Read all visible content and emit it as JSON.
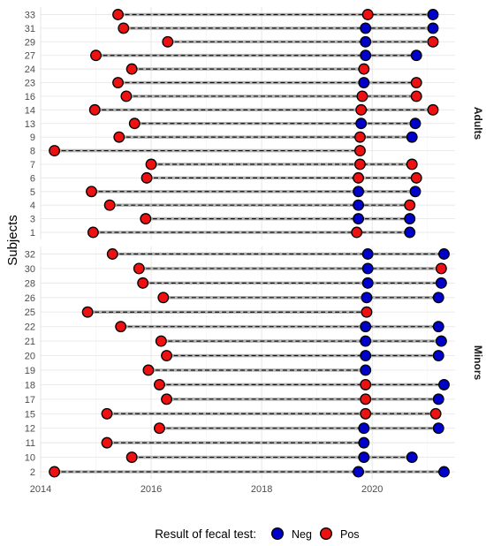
{
  "chart_data": {
    "type": "scatter",
    "ylabel": "Subjects",
    "xlim": [
      2014,
      2021.5
    ],
    "x_ticks": [
      "2014",
      "2016",
      "2018",
      "2020"
    ],
    "x_tick_values": [
      2014,
      2016,
      2018,
      2020
    ],
    "grid": true,
    "legend": {
      "title": "Result of fecal test:",
      "placement": "bottom",
      "entries": [
        {
          "label": "Neg",
          "color": "#0000cd"
        },
        {
          "label": "Pos",
          "color": "#ee1111"
        }
      ]
    },
    "panels": [
      {
        "name": "Adults",
        "subjects": [
          {
            "id": "33",
            "tests": [
              {
                "x": 2015.4,
                "result": "Pos"
              },
              {
                "x": 2019.92,
                "result": "Pos"
              },
              {
                "x": 2021.1,
                "result": "Neg"
              }
            ]
          },
          {
            "id": "31",
            "tests": [
              {
                "x": 2015.5,
                "result": "Pos"
              },
              {
                "x": 2019.88,
                "result": "Neg"
              },
              {
                "x": 2021.1,
                "result": "Neg"
              }
            ]
          },
          {
            "id": "29",
            "tests": [
              {
                "x": 2016.3,
                "result": "Pos"
              },
              {
                "x": 2019.88,
                "result": "Neg"
              },
              {
                "x": 2021.1,
                "result": "Pos"
              }
            ]
          },
          {
            "id": "27",
            "tests": [
              {
                "x": 2015.0,
                "result": "Pos"
              },
              {
                "x": 2019.88,
                "result": "Neg"
              },
              {
                "x": 2020.8,
                "result": "Neg"
              }
            ]
          },
          {
            "id": "24",
            "tests": [
              {
                "x": 2015.65,
                "result": "Pos"
              },
              {
                "x": 2019.85,
                "result": "Pos"
              }
            ]
          },
          {
            "id": "23",
            "tests": [
              {
                "x": 2015.4,
                "result": "Pos"
              },
              {
                "x": 2019.85,
                "result": "Neg"
              },
              {
                "x": 2020.8,
                "result": "Pos"
              }
            ]
          },
          {
            "id": "16",
            "tests": [
              {
                "x": 2015.55,
                "result": "Pos"
              },
              {
                "x": 2019.82,
                "result": "Pos"
              },
              {
                "x": 2020.8,
                "result": "Pos"
              }
            ]
          },
          {
            "id": "14",
            "tests": [
              {
                "x": 2014.98,
                "result": "Pos"
              },
              {
                "x": 2019.8,
                "result": "Pos"
              },
              {
                "x": 2021.1,
                "result": "Pos"
              }
            ]
          },
          {
            "id": "13",
            "tests": [
              {
                "x": 2015.7,
                "result": "Pos"
              },
              {
                "x": 2019.8,
                "result": "Neg"
              },
              {
                "x": 2020.78,
                "result": "Neg"
              }
            ]
          },
          {
            "id": "9",
            "tests": [
              {
                "x": 2015.42,
                "result": "Pos"
              },
              {
                "x": 2019.78,
                "result": "Pos"
              },
              {
                "x": 2020.72,
                "result": "Neg"
              }
            ]
          },
          {
            "id": "8",
            "tests": [
              {
                "x": 2014.25,
                "result": "Pos"
              },
              {
                "x": 2019.78,
                "result": "Pos"
              }
            ]
          },
          {
            "id": "7",
            "tests": [
              {
                "x": 2016.0,
                "result": "Pos"
              },
              {
                "x": 2019.78,
                "result": "Pos"
              },
              {
                "x": 2020.72,
                "result": "Pos"
              }
            ]
          },
          {
            "id": "6",
            "tests": [
              {
                "x": 2015.92,
                "result": "Pos"
              },
              {
                "x": 2019.75,
                "result": "Pos"
              },
              {
                "x": 2020.8,
                "result": "Pos"
              }
            ]
          },
          {
            "id": "5",
            "tests": [
              {
                "x": 2014.92,
                "result": "Pos"
              },
              {
                "x": 2019.75,
                "result": "Neg"
              },
              {
                "x": 2020.78,
                "result": "Neg"
              }
            ]
          },
          {
            "id": "4",
            "tests": [
              {
                "x": 2015.25,
                "result": "Pos"
              },
              {
                "x": 2019.75,
                "result": "Neg"
              },
              {
                "x": 2020.68,
                "result": "Pos"
              }
            ]
          },
          {
            "id": "3",
            "tests": [
              {
                "x": 2015.9,
                "result": "Pos"
              },
              {
                "x": 2019.75,
                "result": "Neg"
              },
              {
                "x": 2020.68,
                "result": "Neg"
              }
            ]
          },
          {
            "id": "1",
            "tests": [
              {
                "x": 2014.95,
                "result": "Pos"
              },
              {
                "x": 2019.72,
                "result": "Pos"
              },
              {
                "x": 2020.68,
                "result": "Neg"
              }
            ]
          }
        ]
      },
      {
        "name": "Minors",
        "subjects": [
          {
            "id": "32",
            "tests": [
              {
                "x": 2015.3,
                "result": "Pos"
              },
              {
                "x": 2019.92,
                "result": "Neg"
              },
              {
                "x": 2021.3,
                "result": "Neg"
              }
            ]
          },
          {
            "id": "30",
            "tests": [
              {
                "x": 2015.78,
                "result": "Pos"
              },
              {
                "x": 2019.92,
                "result": "Neg"
              },
              {
                "x": 2021.25,
                "result": "Pos"
              }
            ]
          },
          {
            "id": "28",
            "tests": [
              {
                "x": 2015.85,
                "result": "Pos"
              },
              {
                "x": 2019.92,
                "result": "Neg"
              },
              {
                "x": 2021.25,
                "result": "Neg"
              }
            ]
          },
          {
            "id": "26",
            "tests": [
              {
                "x": 2016.22,
                "result": "Pos"
              },
              {
                "x": 2019.9,
                "result": "Neg"
              },
              {
                "x": 2021.2,
                "result": "Neg"
              }
            ]
          },
          {
            "id": "25",
            "tests": [
              {
                "x": 2014.85,
                "result": "Pos"
              },
              {
                "x": 2019.9,
                "result": "Pos"
              }
            ]
          },
          {
            "id": "22",
            "tests": [
              {
                "x": 2015.45,
                "result": "Pos"
              },
              {
                "x": 2019.88,
                "result": "Neg"
              },
              {
                "x": 2021.2,
                "result": "Neg"
              }
            ]
          },
          {
            "id": "21",
            "tests": [
              {
                "x": 2016.18,
                "result": "Pos"
              },
              {
                "x": 2019.88,
                "result": "Neg"
              },
              {
                "x": 2021.25,
                "result": "Neg"
              }
            ]
          },
          {
            "id": "20",
            "tests": [
              {
                "x": 2016.28,
                "result": "Pos"
              },
              {
                "x": 2019.88,
                "result": "Neg"
              },
              {
                "x": 2021.2,
                "result": "Neg"
              }
            ]
          },
          {
            "id": "19",
            "tests": [
              {
                "x": 2015.95,
                "result": "Pos"
              },
              {
                "x": 2019.88,
                "result": "Neg"
              }
            ]
          },
          {
            "id": "18",
            "tests": [
              {
                "x": 2016.15,
                "result": "Pos"
              },
              {
                "x": 2019.88,
                "result": "Pos"
              },
              {
                "x": 2021.3,
                "result": "Neg"
              }
            ]
          },
          {
            "id": "17",
            "tests": [
              {
                "x": 2016.28,
                "result": "Pos"
              },
              {
                "x": 2019.88,
                "result": "Pos"
              },
              {
                "x": 2021.2,
                "result": "Neg"
              }
            ]
          },
          {
            "id": "15",
            "tests": [
              {
                "x": 2015.2,
                "result": "Pos"
              },
              {
                "x": 2019.88,
                "result": "Pos"
              },
              {
                "x": 2021.15,
                "result": "Pos"
              }
            ]
          },
          {
            "id": "12",
            "tests": [
              {
                "x": 2016.15,
                "result": "Pos"
              },
              {
                "x": 2019.85,
                "result": "Neg"
              },
              {
                "x": 2021.2,
                "result": "Neg"
              }
            ]
          },
          {
            "id": "11",
            "tests": [
              {
                "x": 2015.2,
                "result": "Pos"
              },
              {
                "x": 2019.85,
                "result": "Neg"
              }
            ]
          },
          {
            "id": "10",
            "tests": [
              {
                "x": 2015.65,
                "result": "Pos"
              },
              {
                "x": 2019.85,
                "result": "Neg"
              },
              {
                "x": 2020.72,
                "result": "Neg"
              }
            ]
          },
          {
            "id": "2",
            "tests": [
              {
                "x": 2014.25,
                "result": "Pos"
              },
              {
                "x": 2019.75,
                "result": "Neg"
              },
              {
                "x": 2021.3,
                "result": "Neg"
              }
            ]
          }
        ]
      }
    ]
  }
}
